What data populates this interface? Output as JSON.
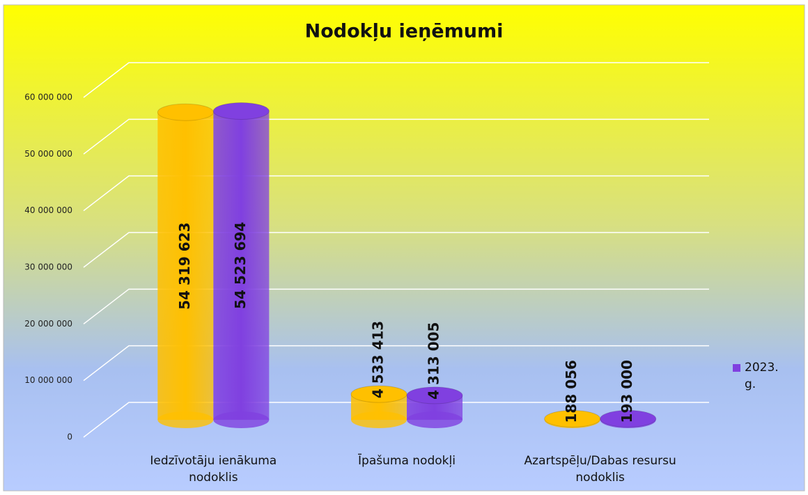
{
  "chart_data": {
    "type": "bar3d",
    "title": "Nodokļu ieņēmumi",
    "categories": [
      "Iedzīvotāju ienākuma nodoklis",
      "Īpašuma nodokļi",
      "Azartspēļu/Dabas resursu nodoklis"
    ],
    "series": [
      {
        "color": "#ffc000",
        "values": [
          54319623,
          4533413,
          188056
        ],
        "value_labels": [
          "54 319 623",
          "4 533 413",
          "188 056"
        ]
      },
      {
        "name": "2023.g.",
        "color": "#8040e0",
        "values": [
          54523694,
          4313005,
          193000
        ],
        "value_labels": [
          "54 523 694",
          "4 313 005",
          "193 000"
        ]
      }
    ],
    "ylim": [
      0,
      60000000
    ],
    "yticks": [
      0,
      {
        "value": 10000000,
        "label": "10 000 000"
      },
      {
        "value": 20000000,
        "label": "20 000 000"
      },
      {
        "value": 30000000,
        "label": "30 000 000"
      },
      {
        "value": 40000000,
        "label": "40 000 000"
      },
      {
        "value": 50000000,
        "label": "50 000 000"
      },
      {
        "value": 60000000,
        "label": "60 000 000"
      }
    ],
    "grid": true,
    "legend": "right"
  }
}
